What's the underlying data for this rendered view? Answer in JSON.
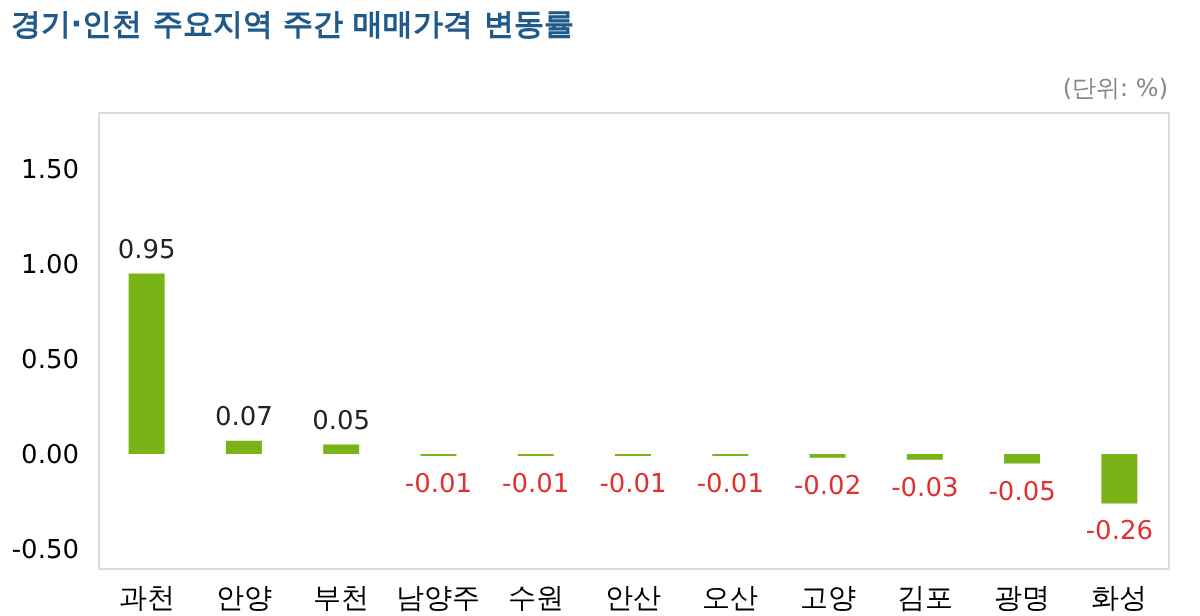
{
  "chart_data": {
    "type": "bar",
    "title": "경기·인천 주요지역 주간  매매가격 변동률",
    "annotations": [
      "(단위: %)"
    ],
    "categories": [
      "과천",
      "안양",
      "부천",
      "남양주",
      "수원",
      "안산",
      "오산",
      "고양",
      "김포",
      "광명",
      "화성"
    ],
    "values": [
      0.95,
      0.07,
      0.05,
      -0.01,
      -0.01,
      -0.01,
      -0.01,
      -0.02,
      -0.03,
      -0.05,
      -0.26
    ],
    "color": "#7ab317",
    "value_labels": [
      "0.95",
      "0.07",
      "0.05",
      "-0.01",
      "-0.01",
      "-0.01",
      "-0.01",
      "-0.02",
      "-0.03",
      "-0.05",
      "-0.26"
    ],
    "ylim": [
      -0.6,
      1.8
    ],
    "yticks": [
      {
        "value": -0.5,
        "label": "-0.50"
      },
      {
        "value": 0,
        "label": "0.00"
      },
      {
        "value": 0.5,
        "label": "0.50"
      },
      {
        "value": 1,
        "label": "1.00"
      },
      {
        "value": 1.5,
        "label": "1.50"
      }
    ],
    "grid": false
  }
}
